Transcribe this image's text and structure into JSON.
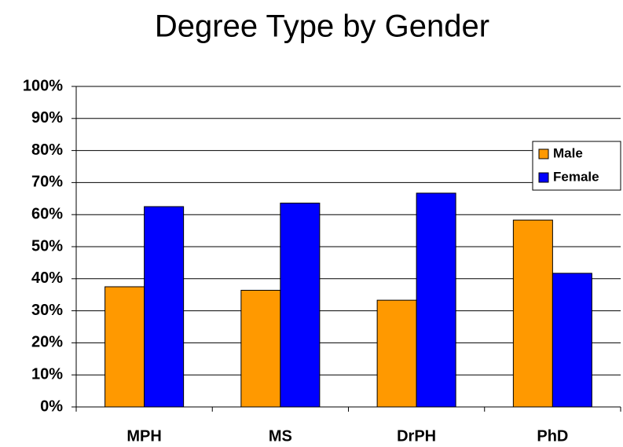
{
  "chart_data": {
    "type": "bar",
    "title": "Degree Type by Gender",
    "categories": [
      "MPH",
      "MS",
      "DrPH",
      "PhD"
    ],
    "series": [
      {
        "name": "Male",
        "color": "#ff9900",
        "values": [
          37.5,
          36.4,
          33.3,
          58.3
        ]
      },
      {
        "name": "Female",
        "color": "#0000ff",
        "values": [
          62.5,
          63.6,
          66.7,
          41.7
        ]
      }
    ],
    "ylim": [
      0,
      100
    ],
    "yticks": [
      {
        "value": 0,
        "label": "0%"
      },
      {
        "value": 10,
        "label": "10%"
      },
      {
        "value": 20,
        "label": "20%"
      },
      {
        "value": 30,
        "label": "30%"
      },
      {
        "value": 40,
        "label": "40%"
      },
      {
        "value": 50,
        "label": "50%"
      },
      {
        "value": 60,
        "label": "60%"
      },
      {
        "value": 70,
        "label": "70%"
      },
      {
        "value": 80,
        "label": "80%"
      },
      {
        "value": 90,
        "label": "90%"
      },
      {
        "value": 100,
        "label": "100%"
      }
    ],
    "grid": true,
    "legend": "right"
  }
}
